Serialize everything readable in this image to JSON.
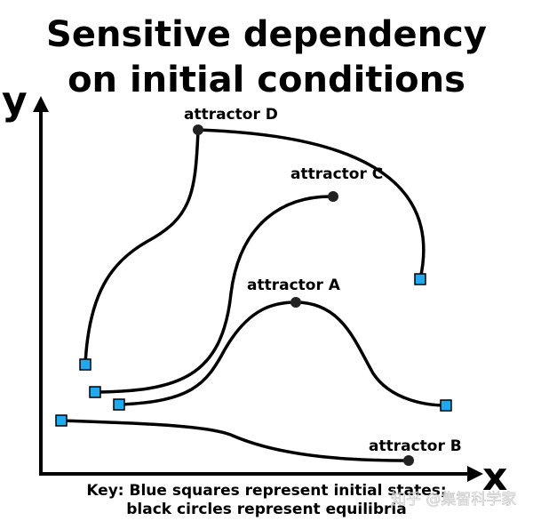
{
  "title_line1": "Sensitive dependency",
  "title_line2": "on initial conditions",
  "axis_y": "y",
  "axis_x": "x",
  "labels": {
    "a": "attractor A",
    "b": "attractor B",
    "c": "attractor C",
    "d": "attractor D"
  },
  "key_line1": "Key: Blue squares represent initial states;",
  "key_line2": "black circles represent equilibria",
  "watermark": "知乎 @集智科学家",
  "colors": {
    "square": "#1eaaf1",
    "circle": "#222222",
    "line": "#000000"
  }
}
